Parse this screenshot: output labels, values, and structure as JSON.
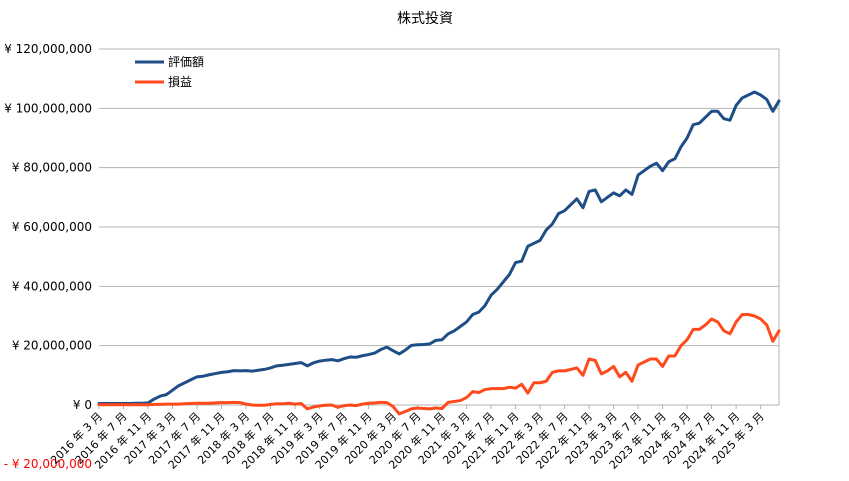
{
  "chart_data": {
    "type": "line",
    "title": "株式投資",
    "xlabel": "",
    "ylabel": "",
    "ylim": [
      -20000000,
      120000000
    ],
    "yticks": [
      {
        "value": 120000000,
        "label": "¥ 120,000,000"
      },
      {
        "value": 100000000,
        "label": "¥ 100,000,000"
      },
      {
        "value": 80000000,
        "label": "¥ 80,000,000"
      },
      {
        "value": 60000000,
        "label": "¥ 60,000,000"
      },
      {
        "value": 40000000,
        "label": "¥ 40,000,000"
      },
      {
        "value": 20000000,
        "label": "¥ 20,000,000"
      },
      {
        "value": 0,
        "label": "¥ 0"
      },
      {
        "value": -20000000,
        "label": "- ¥ 20,000,000"
      }
    ],
    "grid": "horizontal",
    "legend_position": "top-left",
    "colors": {
      "評価額": "#1f4e87",
      "損益": "#ff4a1c",
      "grid": "#b3b3b3",
      "negative_tick": "#ff0000"
    },
    "x_ticks": [
      "2016 年 3 月",
      "2016 年 7 月",
      "2016 年 11 月",
      "2017 年 3 月",
      "2017 年 7 月",
      "2017 年 11 月",
      "2018 年 3 月",
      "2018 年 7 月",
      "2018 年 11 月",
      "2019 年 3 月",
      "2019 年 7 月",
      "2019 年 11 月",
      "2020 年 3 月",
      "2020 年 7 月",
      "2020 年 11 月",
      "2021 年 3 月",
      "2021 年 7 月",
      "2021 年 11 月",
      "2022 年 3 月",
      "2022 年 7 月",
      "2022 年 11 月",
      "2023 年 3 月",
      "2023 年 7 月",
      "2023 年 11 月",
      "2024 年 3 月",
      "2024 年 7 月",
      "2024 年 11 月",
      "2025 年 3 月"
    ],
    "x_start": "2016-03",
    "series": [
      {
        "name": "評価額",
        "values": [
          0.5,
          0.5,
          0.5,
          0.5,
          0.5,
          0.5,
          0.6,
          0.6,
          0.7,
          2.0,
          3.0,
          3.5,
          5.0,
          6.5,
          7.5,
          8.5,
          9.5,
          9.7,
          10.2,
          10.6,
          11.0,
          11.2,
          11.6,
          11.5,
          11.6,
          11.4,
          11.7,
          12.0,
          12.5,
          13.2,
          13.4,
          13.7,
          14.0,
          14.3,
          13.2,
          14.2,
          14.8,
          15.1,
          15.3,
          14.9,
          15.6,
          16.2,
          16.1,
          16.6,
          17.0,
          17.5,
          18.7,
          19.5,
          18.3,
          17.2,
          18.5,
          20.1,
          20.3,
          20.4,
          20.6,
          21.8,
          22.0,
          24.0,
          25.0,
          26.5,
          28.0,
          30.5,
          31.3,
          33.5,
          37.0,
          39.0,
          41.5,
          44.0,
          48.0,
          48.5,
          53.5,
          54.5,
          55.5,
          59.0,
          61.0,
          64.5,
          65.5,
          67.5,
          69.5,
          66.5,
          72.0,
          72.5,
          68.5,
          70.0,
          71.5,
          70.5,
          72.5,
          71.0,
          77.5,
          79.0,
          80.5,
          81.5,
          79.0,
          82.0,
          83.0,
          87.0,
          90.0,
          94.5,
          95.0,
          97.0,
          99.0,
          99.0,
          96.5,
          96.0,
          101.0,
          103.5,
          104.5,
          105.5,
          104.5,
          103.0,
          99.0,
          102.5
        ]
      },
      {
        "name": "損益",
        "values": [
          0.1,
          0.1,
          0.1,
          0.1,
          0.1,
          0.1,
          0.1,
          0.1,
          0.1,
          0.2,
          0.2,
          0.3,
          0.3,
          0.3,
          0.4,
          0.5,
          0.6,
          0.6,
          0.6,
          0.7,
          0.8,
          0.8,
          0.9,
          0.8,
          0.3,
          0.0,
          -0.1,
          -0.1,
          0.2,
          0.4,
          0.4,
          0.6,
          0.3,
          0.5,
          -1.3,
          -0.7,
          -0.3,
          -0.1,
          0.0,
          -0.8,
          -0.2,
          0.0,
          -0.2,
          0.3,
          0.6,
          0.7,
          0.9,
          0.8,
          -0.5,
          -3.0,
          -2.2,
          -1.3,
          -1.0,
          -1.2,
          -1.3,
          -1.0,
          -1.2,
          0.9,
          1.2,
          1.5,
          2.5,
          4.5,
          4.2,
          5.2,
          5.5,
          5.5,
          5.5,
          6.0,
          5.7,
          7.0,
          4.0,
          7.5,
          7.5,
          8.0,
          11.0,
          11.5,
          11.5,
          12.0,
          12.5,
          10.0,
          15.5,
          15.0,
          10.5,
          11.5,
          13.0,
          9.5,
          11.0,
          8.0,
          13.5,
          14.5,
          15.5,
          15.5,
          13.0,
          16.5,
          16.5,
          20.0,
          22.0,
          25.5,
          25.5,
          27.0,
          29.0,
          28.0,
          25.0,
          24.0,
          28.0,
          30.5,
          30.5,
          30.0,
          29.0,
          27.0,
          21.5,
          25.0
        ]
      }
    ]
  }
}
